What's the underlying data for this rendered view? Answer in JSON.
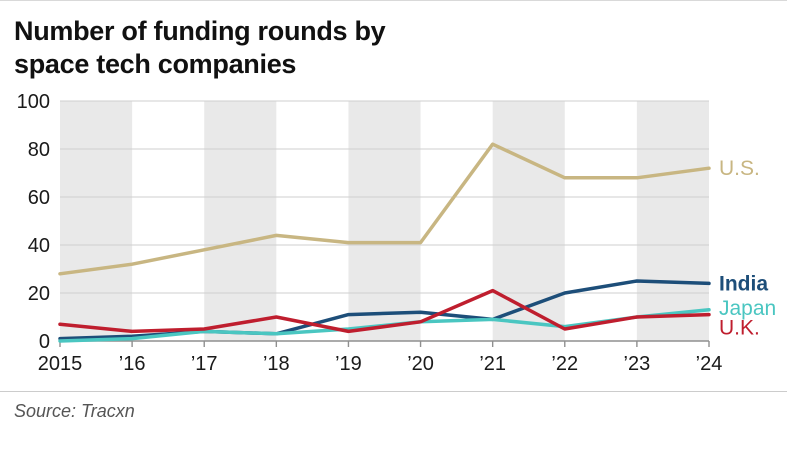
{
  "title_lines": [
    "Number of funding rounds by",
    "space tech companies"
  ],
  "source": "Source: Tracxn",
  "chart_data": {
    "type": "line",
    "title": "Number of funding rounds by space tech companies",
    "x_tick_labels": [
      "2015",
      "’16",
      "’17",
      "’18",
      "’19",
      "’20",
      "’21",
      "’22",
      "’23",
      "’24"
    ],
    "x": [
      2015,
      2016,
      2017,
      2018,
      2019,
      2020,
      2021,
      2022,
      2023,
      2024
    ],
    "series": [
      {
        "name": "U.S.",
        "color": "#c8b682",
        "label_bold": false,
        "values": [
          28,
          32,
          38,
          44,
          41,
          41,
          82,
          68,
          68,
          72
        ]
      },
      {
        "name": "India",
        "color": "#1d4e79",
        "label_bold": true,
        "values": [
          1,
          2,
          4,
          3,
          11,
          12,
          9,
          20,
          25,
          24
        ]
      },
      {
        "name": "Japan",
        "color": "#4ac6c1",
        "label_bold": false,
        "values": [
          0,
          1,
          4,
          3,
          5,
          8,
          9,
          6,
          10,
          13
        ]
      },
      {
        "name": "U.K.",
        "color": "#bf1e2e",
        "label_bold": false,
        "values": [
          7,
          4,
          5,
          10,
          4,
          8,
          21,
          5,
          10,
          11
        ]
      }
    ],
    "ylim": [
      0,
      100
    ],
    "yticks": [
      0,
      20,
      40,
      60,
      80,
      100
    ],
    "band_color": "#e9e9e9",
    "grid": "horizontal",
    "legend_position": "right-of-lines"
  }
}
